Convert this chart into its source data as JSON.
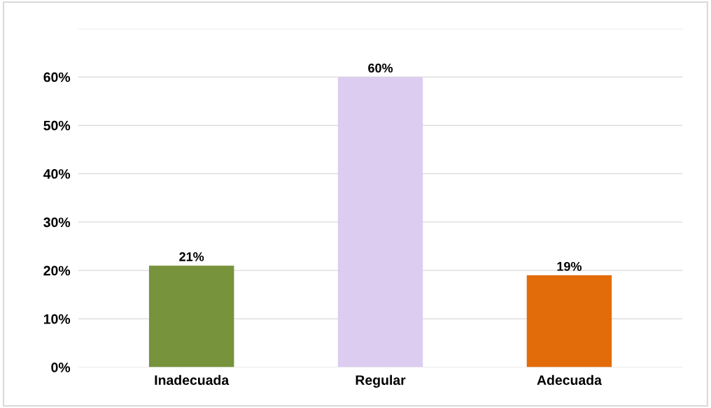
{
  "chart_data": {
    "type": "bar",
    "categories": [
      "Inadecuada",
      "Regular",
      "Adecuada"
    ],
    "values": [
      21,
      60,
      19
    ],
    "colors": [
      "#77933c",
      "#dccdf0",
      "#e36c0a"
    ],
    "value_labels": [
      "21%",
      "60%",
      "19%"
    ],
    "ylim": [
      0,
      70
    ],
    "yticks": [
      {
        "value": 0,
        "label": "0%"
      },
      {
        "value": 10,
        "label": "10%"
      },
      {
        "value": 20,
        "label": "20%"
      },
      {
        "value": 30,
        "label": "30%"
      },
      {
        "value": 40,
        "label": "40%"
      },
      {
        "value": 50,
        "label": "50%"
      },
      {
        "value": 60,
        "label": "60%"
      },
      {
        "value": 70,
        "label": null
      }
    ],
    "grid": "y",
    "legend": false
  }
}
